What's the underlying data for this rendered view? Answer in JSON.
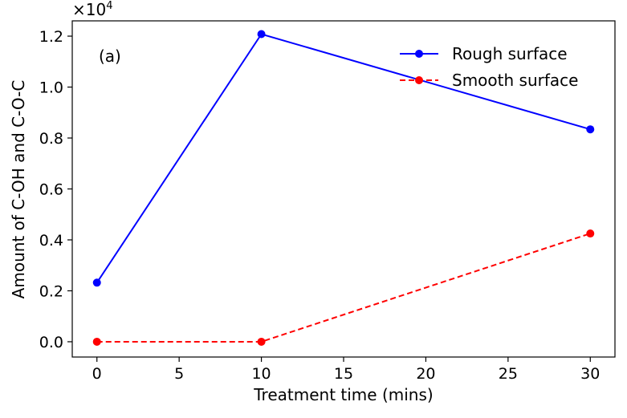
{
  "chart_data": {
    "type": "line",
    "title": "",
    "panel_label": "(a)",
    "xlabel": "Treatment time (mins)",
    "ylabel": "Amount of C-OH and C-O-C",
    "y_scale_base": "×10",
    "y_scale_exponent": "4",
    "xlim": [
      -1.5,
      31.5
    ],
    "ylim": [
      -0.06,
      1.26
    ],
    "x_ticks": [
      0,
      5,
      10,
      15,
      20,
      25,
      30
    ],
    "x_tick_labels": [
      "0",
      "5",
      "10",
      "15",
      "20",
      "25",
      "30"
    ],
    "y_ticks": [
      0.0,
      0.2,
      0.4,
      0.6,
      0.8,
      1.0,
      1.2
    ],
    "y_tick_labels": [
      "0.0",
      "0.2",
      "0.4",
      "0.6",
      "0.8",
      "1.0",
      "1.2"
    ],
    "grid": false,
    "legend_position": "top-right",
    "series": [
      {
        "name": "Rough surface",
        "x": [
          0,
          10,
          30
        ],
        "values": [
          0.232,
          1.208,
          0.834
        ],
        "color": "#0000ff",
        "linestyle": "solid",
        "marker": "circle"
      },
      {
        "name": "Smooth surface",
        "x": [
          0,
          10,
          30
        ],
        "values": [
          0.0,
          0.0,
          0.425
        ],
        "color": "#ff0000",
        "linestyle": "dashed",
        "marker": "circle"
      }
    ]
  }
}
